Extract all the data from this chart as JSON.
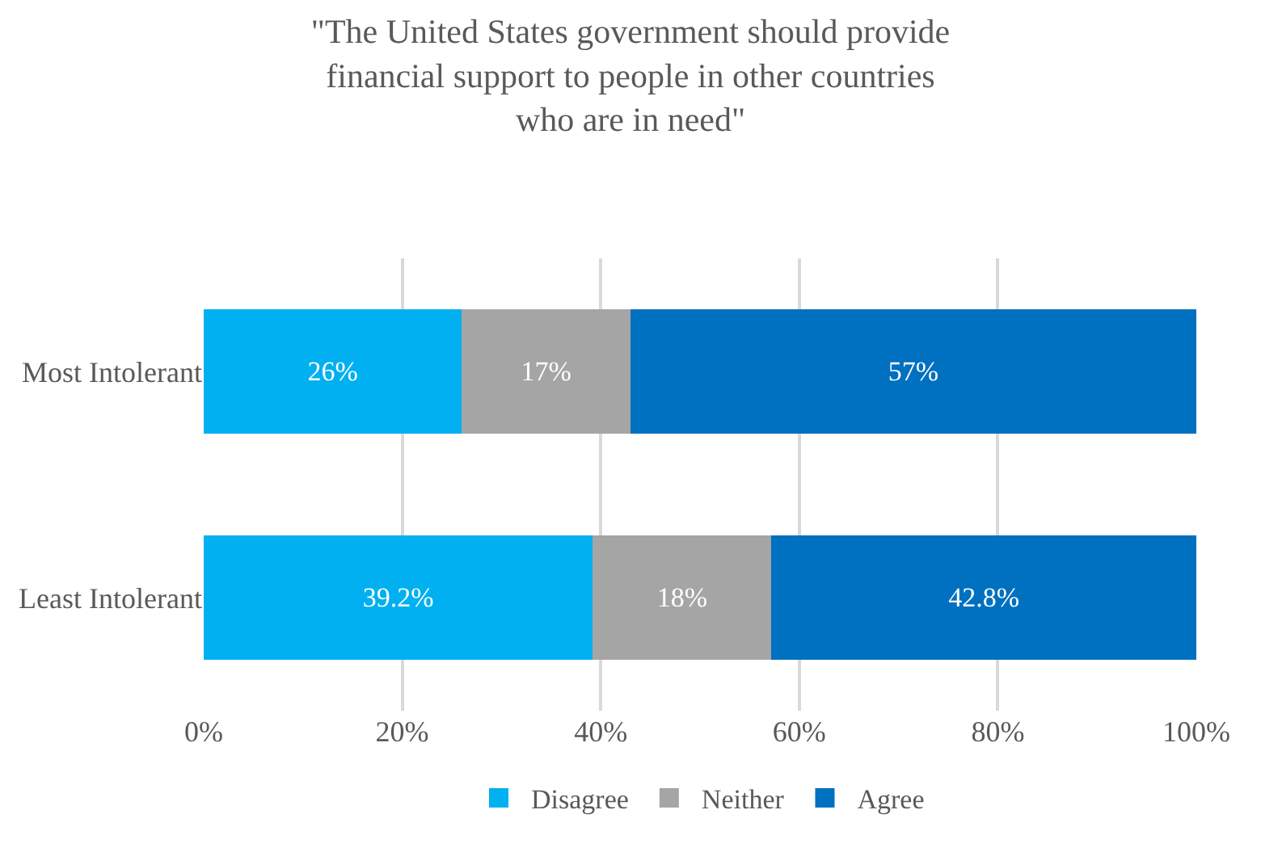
{
  "chart_data": {
    "type": "bar",
    "orientation": "horizontal",
    "stacked": true,
    "title": "\"The United States government should provide financial support to people in other countries who are in need\"",
    "categories": [
      "Most Intolerant",
      "Least Intolerant"
    ],
    "series": [
      {
        "name": "Disagree",
        "color": "#00b0f0",
        "values": [
          26,
          39.2
        ],
        "value_labels": [
          "26%",
          "39.2%"
        ]
      },
      {
        "name": "Neither",
        "color": "#a5a5a5",
        "values": [
          17,
          18
        ],
        "value_labels": [
          "17%",
          "18%"
        ]
      },
      {
        "name": "Agree",
        "color": "#0070c0",
        "values": [
          57,
          42.8
        ],
        "value_labels": [
          "57%",
          "42.8%"
        ]
      }
    ],
    "xlim": [
      0,
      100
    ],
    "xticks": [
      {
        "value": 0,
        "label": "0%"
      },
      {
        "value": 20,
        "label": "20%"
      },
      {
        "value": 40,
        "label": "40%"
      },
      {
        "value": 60,
        "label": "60%"
      },
      {
        "value": 80,
        "label": "80%"
      },
      {
        "value": 100,
        "label": "100%"
      }
    ],
    "grid": "x",
    "legend": "bottom"
  }
}
